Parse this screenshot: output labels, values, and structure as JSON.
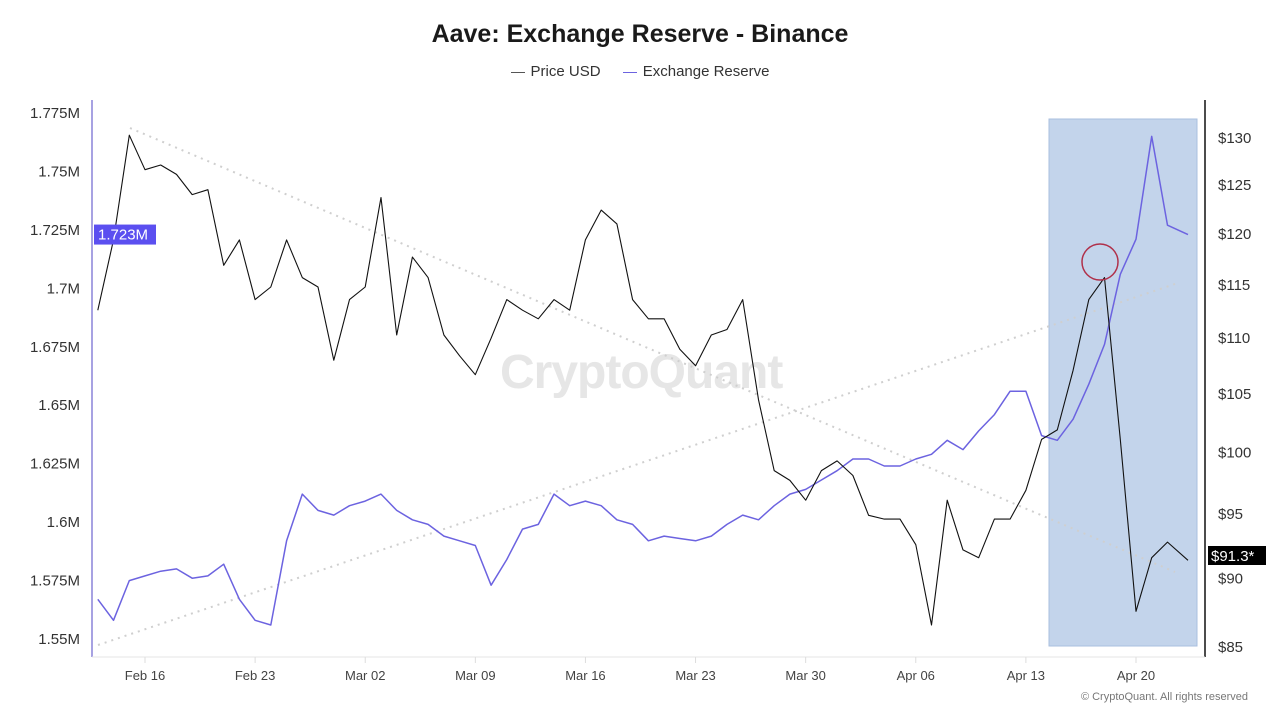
{
  "chart_data": {
    "type": "line",
    "title": "Aave: Exchange Reserve - Binance",
    "legend_position": "top",
    "grid": false,
    "x_ticks": [
      "Feb 16",
      "Feb 23",
      "Mar 02",
      "Mar 09",
      "Mar 16",
      "Mar 23",
      "Mar 30",
      "Apr 06",
      "Apr 13",
      "Apr 20"
    ],
    "left_axis": {
      "scale": "linear",
      "range": [
        1.55,
        1.775
      ],
      "ticks": [
        "1.775M",
        "1.75M",
        "1.725M",
        "1.7M",
        "1.675M",
        "1.65M",
        "1.625M",
        "1.6M",
        "1.575M",
        "1.55M"
      ],
      "tick_values": [
        1.775,
        1.75,
        1.725,
        1.7,
        1.675,
        1.65,
        1.625,
        1.6,
        1.575,
        1.55
      ],
      "current_label": "1.723M"
    },
    "right_axis": {
      "scale": "log",
      "range": [
        85,
        130
      ],
      "ticks": [
        "$130",
        "$125",
        "$120",
        "$115",
        "$110",
        "$105",
        "$100",
        "$95",
        "$90",
        "$85"
      ],
      "tick_values": [
        130,
        125,
        120,
        115,
        110,
        105,
        100,
        95,
        90,
        85
      ],
      "current_label": "$91.3*"
    },
    "x": [
      "Feb 13",
      "Feb 14",
      "Feb 15",
      "Feb 16",
      "Feb 17",
      "Feb 18",
      "Feb 19",
      "Feb 20",
      "Feb 21",
      "Feb 22",
      "Feb 23",
      "Feb 24",
      "Feb 25",
      "Feb 26",
      "Feb 27",
      "Feb 28",
      "Mar 01",
      "Mar 02",
      "Mar 03",
      "Mar 04",
      "Mar 05",
      "Mar 06",
      "Mar 07",
      "Mar 08",
      "Mar 09",
      "Mar 10",
      "Mar 11",
      "Mar 12",
      "Mar 13",
      "Mar 14",
      "Mar 15",
      "Mar 16",
      "Mar 17",
      "Mar 18",
      "Mar 19",
      "Mar 20",
      "Mar 21",
      "Mar 22",
      "Mar 23",
      "Mar 24",
      "Mar 25",
      "Mar 26",
      "Mar 27",
      "Mar 28",
      "Mar 29",
      "Mar 30",
      "Mar 31",
      "Apr 01",
      "Apr 02",
      "Apr 03",
      "Apr 04",
      "Apr 05",
      "Apr 06",
      "Apr 07",
      "Apr 08",
      "Apr 09",
      "Apr 10",
      "Apr 11",
      "Apr 12",
      "Apr 13",
      "Apr 14",
      "Apr 15",
      "Apr 16",
      "Apr 17",
      "Apr 18",
      "Apr 19",
      "Apr 20",
      "Apr 21",
      "Apr 22",
      "Apr 23"
    ],
    "series": [
      {
        "name": "Price USD",
        "axis": "right",
        "color": "#111111",
        "values": [
          112.5,
          119.3,
          130.2,
          126.5,
          127,
          126,
          123.9,
          124.4,
          116.8,
          119.3,
          113.5,
          114.7,
          119.3,
          115.6,
          114.7,
          107.9,
          113.5,
          114.7,
          123.6,
          110.2,
          117.6,
          115.6,
          110.2,
          108.3,
          106.6,
          109.9,
          113.5,
          112.5,
          111.7,
          113.5,
          112.5,
          119.3,
          122.3,
          120.9,
          113.5,
          111.7,
          111.7,
          108.9,
          107.4,
          110.2,
          110.7,
          113.5,
          104.4,
          98.4,
          97.6,
          96.0,
          98.4,
          99.2,
          98.0,
          94.8,
          94.5,
          94.5,
          92.5,
          86.5,
          96.0,
          92.1,
          91.5,
          94.5,
          94.5,
          96.8,
          101,
          101.8,
          107,
          113.5,
          115.6,
          101,
          87.5,
          91.5,
          92.7,
          91.3
        ]
      },
      {
        "name": "Exchange Reserve",
        "axis": "left",
        "color": "#6c63e0",
        "values": [
          1.567,
          1.558,
          1.575,
          1.577,
          1.579,
          1.58,
          1.576,
          1.577,
          1.582,
          1.567,
          1.558,
          1.556,
          1.592,
          1.612,
          1.605,
          1.603,
          1.607,
          1.609,
          1.612,
          1.605,
          1.601,
          1.599,
          1.594,
          1.592,
          1.59,
          1.573,
          1.584,
          1.597,
          1.599,
          1.612,
          1.607,
          1.609,
          1.607,
          1.601,
          1.599,
          1.592,
          1.594,
          1.593,
          1.592,
          1.594,
          1.599,
          1.603,
          1.601,
          1.607,
          1.612,
          1.614,
          1.618,
          1.622,
          1.627,
          1.627,
          1.624,
          1.624,
          1.627,
          1.629,
          1.635,
          1.631,
          1.639,
          1.646,
          1.656,
          1.656,
          1.637,
          1.635,
          1.644,
          1.659,
          1.676,
          1.706,
          1.721,
          1.765,
          1.727,
          1.723
        ]
      }
    ]
  },
  "legend": {
    "price": "Price USD",
    "reserve": "Exchange Reserve"
  },
  "watermark": "CryptoQuant",
  "copyright": "© CryptoQuant. All rights reserved",
  "colors": {
    "reserve": "#6c63e0",
    "price": "#111111",
    "highlight": "#b8cce8",
    "circle": "#b0304a"
  }
}
